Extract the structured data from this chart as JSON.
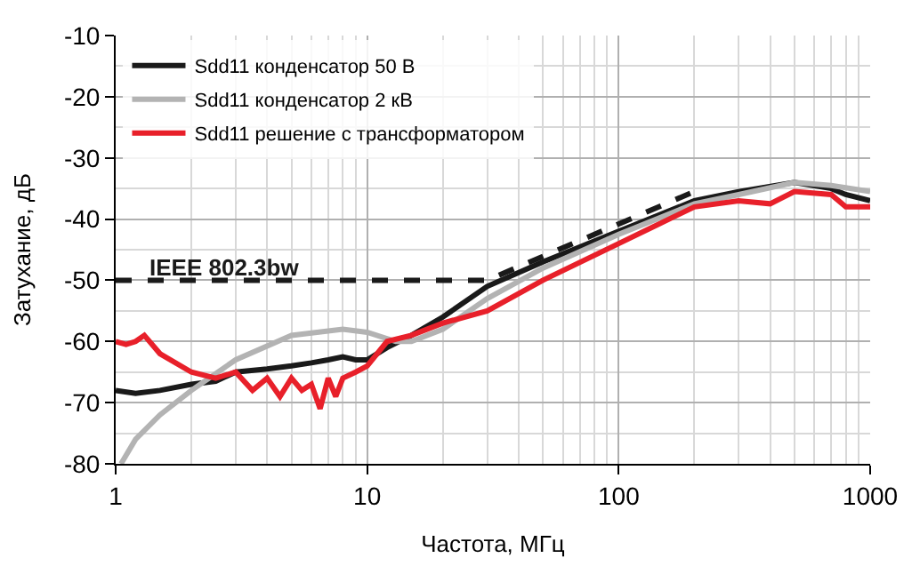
{
  "chart_data": {
    "type": "line",
    "xlabel": "Частота, МГц",
    "ylabel": "Затухание, дБ",
    "log": "x",
    "grid": true,
    "legend": "top left",
    "xlim": [
      1,
      1000
    ],
    "xticks": [
      1,
      10,
      100,
      1000
    ],
    "ylim": [
      -80,
      -10
    ],
    "yticks": [
      -80,
      -70,
      -60,
      -50,
      -40,
      -30,
      -20,
      -10
    ],
    "series": [
      {
        "name": "Sdd11 конденсатор 50 В",
        "color": "#1a1a1a",
        "x": [
          1,
          1.2,
          1.5,
          2,
          2.5,
          3,
          4,
          5,
          6,
          7,
          8,
          9,
          10,
          12,
          15,
          20,
          30,
          50,
          100,
          200,
          300,
          500,
          700,
          800,
          1000
        ],
        "values": [
          -68,
          -68.5,
          -68,
          -67,
          -66.5,
          -65,
          -64.5,
          -64,
          -63.5,
          -63,
          -62.5,
          -63,
          -63,
          -61,
          -59,
          -56,
          -51,
          -47,
          -42,
          -37,
          -35.5,
          -34,
          -35,
          -36,
          -37
        ]
      },
      {
        "name": "Sdd11 конденсатор 2 кВ",
        "color": "#b3b3b3",
        "x": [
          1.05,
          1.2,
          1.5,
          2,
          3,
          5,
          8,
          10,
          13,
          15,
          20,
          30,
          50,
          100,
          200,
          300,
          500,
          700,
          1000
        ],
        "values": [
          -80,
          -76,
          -72,
          -68,
          -63,
          -59,
          -58,
          -58.5,
          -60,
          -60,
          -58,
          -53,
          -48,
          -42.5,
          -37.5,
          -36,
          -34,
          -34.5,
          -35.5
        ]
      },
      {
        "name": "Sdd11 решение с трансформатором",
        "color": "#e8202a",
        "x": [
          1,
          1.1,
          1.2,
          1.3,
          1.5,
          2,
          2.5,
          3,
          3.5,
          4,
          4.5,
          5,
          5.5,
          6,
          6.5,
          7,
          7.5,
          8,
          9,
          10,
          12,
          15,
          20,
          30,
          50,
          100,
          200,
          300,
          400,
          500,
          700,
          800,
          1000
        ],
        "values": [
          -60,
          -60.5,
          -60,
          -59,
          -62,
          -65,
          -66,
          -65,
          -68,
          -66,
          -69,
          -66,
          -68,
          -67,
          -71,
          -66,
          -69,
          -66,
          -65,
          -64,
          -60,
          -59,
          -57,
          -55,
          -50,
          -44,
          -38,
          -37,
          -37.5,
          -35.5,
          -36,
          -38,
          -38
        ]
      },
      {
        "type": "line",
        "color": "#1a1a1a",
        "line_style": "dashed",
        "x": [
          1,
          30,
          200
        ],
        "values": [
          -50,
          -50,
          -35.5
        ]
      }
    ],
    "annotations": [
      "IEEE 802.3bw"
    ]
  }
}
